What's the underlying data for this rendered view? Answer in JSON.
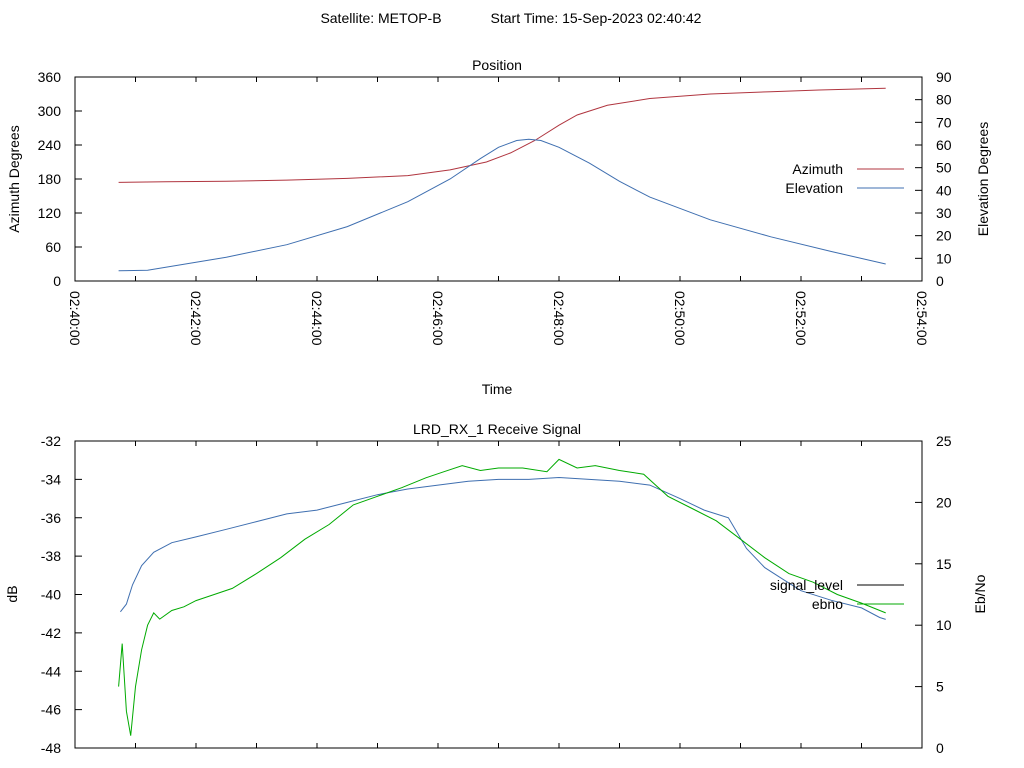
{
  "header": {
    "satellite": "Satellite: METOP-B",
    "start_time": "Start Time: 15-Sep-2023 02:40:42"
  },
  "chart_data": [
    {
      "type": "line",
      "title": "Position",
      "xlabel": "Time",
      "ylabel": "Azimuth Degrees",
      "y2label": "Elevation Degrees",
      "x_ticks": [
        "02:40:00",
        "02:42:00",
        "02:44:00",
        "02:46:00",
        "02:48:00",
        "02:50:00",
        "02:52:00",
        "02:54:00"
      ],
      "xlim_minutes": [
        0,
        14
      ],
      "ylim": [
        0,
        360
      ],
      "y_ticks": [
        0,
        60,
        120,
        180,
        240,
        300,
        360
      ],
      "y2lim": [
        0,
        90
      ],
      "y2_ticks": [
        0,
        10,
        20,
        30,
        40,
        50,
        60,
        70,
        80,
        90
      ],
      "legend_position": "right",
      "grid": false,
      "series": [
        {
          "name": "Azimuth",
          "axis": "y",
          "color": "#b0353f",
          "x": [
            0.72,
            1.5,
            2.5,
            3.5,
            4.5,
            5.5,
            6.2,
            6.8,
            7.2,
            7.6,
            8.0,
            8.3,
            8.8,
            9.5,
            10.5,
            11.5,
            12.3,
            13.4
          ],
          "y": [
            174,
            175,
            176,
            178,
            181,
            186,
            196,
            210,
            226,
            248,
            275,
            293,
            310,
            322,
            330,
            334,
            337,
            340
          ]
        },
        {
          "name": "Elevation",
          "axis": "y2",
          "color": "#3f6fb0",
          "x": [
            0.72,
            1.2,
            1.6,
            2.5,
            3.5,
            4.5,
            5.5,
            6.2,
            6.7,
            7.0,
            7.3,
            7.5,
            7.7,
            8.0,
            8.5,
            9.0,
            9.5,
            10.5,
            11.5,
            12.5,
            13.4
          ],
          "y": [
            4.5,
            4.7,
            6.5,
            10.5,
            16,
            24,
            35,
            45,
            54,
            59,
            62,
            62.5,
            62,
            59,
            52,
            44,
            37,
            27,
            19.5,
            13,
            7.5
          ]
        }
      ]
    },
    {
      "type": "line",
      "title": "LRD_RX_1 Receive Signal",
      "ylabel": "dB",
      "y2label": "Eb/No",
      "xlim_minutes": [
        0,
        14
      ],
      "ylim": [
        -48,
        -32
      ],
      "y_ticks": [
        -48,
        -46,
        -44,
        -42,
        -40,
        -38,
        -36,
        -34,
        -32
      ],
      "y2lim": [
        0,
        25
      ],
      "y2_ticks": [
        0,
        5,
        10,
        15,
        20,
        25
      ],
      "legend_position": "right",
      "grid": false,
      "series": [
        {
          "name": "signal_level",
          "axis": "y",
          "color": "#3f6fb0",
          "x": [
            0.75,
            0.85,
            0.95,
            1.1,
            1.3,
            1.6,
            2.0,
            2.5,
            3.0,
            3.5,
            4.0,
            4.5,
            5.0,
            5.5,
            6.0,
            6.5,
            7.0,
            7.5,
            8.0,
            8.5,
            9.0,
            9.5,
            10.0,
            10.4,
            10.8,
            11.1,
            11.4,
            11.7,
            12.0,
            12.5,
            13.0,
            13.3,
            13.4
          ],
          "y": [
            -40.9,
            -40.5,
            -39.5,
            -38.5,
            -37.8,
            -37.3,
            -37.0,
            -36.6,
            -36.2,
            -35.8,
            -35.6,
            -35.2,
            -34.8,
            -34.5,
            -34.3,
            -34.1,
            -34.0,
            -34.0,
            -33.9,
            -34.0,
            -34.1,
            -34.3,
            -35.0,
            -35.6,
            -36.0,
            -37.6,
            -38.6,
            -39.2,
            -39.8,
            -40.3,
            -40.7,
            -41.2,
            -41.3
          ]
        },
        {
          "name": "ebno",
          "axis": "y2",
          "color": "#00aa00",
          "x": [
            0.72,
            0.78,
            0.85,
            0.92,
            1.0,
            1.1,
            1.2,
            1.3,
            1.4,
            1.6,
            1.8,
            2.0,
            2.3,
            2.6,
            3.0,
            3.4,
            3.8,
            4.2,
            4.6,
            5.0,
            5.4,
            5.8,
            6.1,
            6.4,
            6.7,
            7.0,
            7.4,
            7.8,
            8.0,
            8.3,
            8.6,
            9.0,
            9.4,
            9.8,
            10.2,
            10.6,
            11.0,
            11.4,
            11.8,
            12.2,
            12.6,
            13.0,
            13.4
          ],
          "y": [
            5,
            8.5,
            3,
            1,
            5,
            8,
            10,
            11,
            10.5,
            11.2,
            11.5,
            12,
            12.5,
            13,
            14.2,
            15.5,
            17,
            18.2,
            19.8,
            20.5,
            21.2,
            22,
            22.5,
            23,
            22.6,
            22.8,
            22.8,
            22.5,
            23.5,
            22.8,
            23,
            22.6,
            22.3,
            20.5,
            19.5,
            18.5,
            17,
            15.5,
            14.2,
            13.5,
            12.5,
            11.8,
            11
          ]
        }
      ]
    }
  ]
}
